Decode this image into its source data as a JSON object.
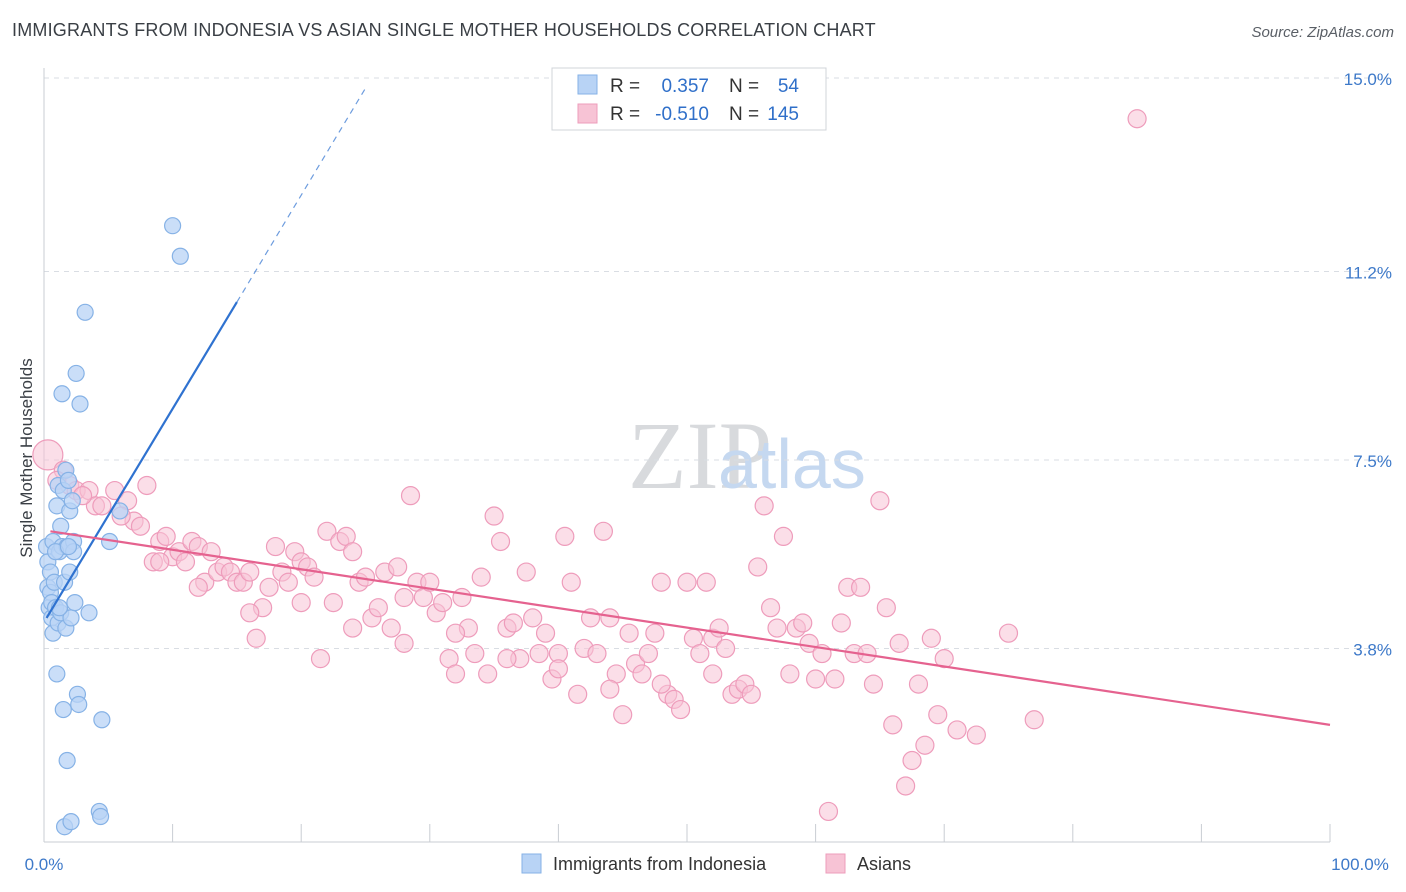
{
  "title": "IMMIGRANTS FROM INDONESIA VS ASIAN SINGLE MOTHER HOUSEHOLDS CORRELATION CHART",
  "source": "Source: ZipAtlas.com",
  "watermark": {
    "zip": "ZIP",
    "atlas": "atlas"
  },
  "legend_top": {
    "rows": [
      {
        "r_label": "R =",
        "r_value": "0.357",
        "n_label": "N =",
        "n_value": "54"
      },
      {
        "r_label": "R =",
        "r_value": "-0.510",
        "n_label": "N =",
        "n_value": "145"
      }
    ]
  },
  "legend_bottom": {
    "items": [
      "Immigrants from Indonesia",
      "Asians"
    ]
  },
  "colors": {
    "blue_fill": "#b8d3f5",
    "blue_stroke": "#86b2e6",
    "blue_line": "#2f72d0",
    "pink_fill": "#f7c3d5",
    "pink_stroke": "#ee9cbb",
    "pink_line": "#e5628f",
    "value_text": "#2f6fc9",
    "grid": "#d9dde3",
    "axis_text": "#3d79c9"
  },
  "chart_data": {
    "type": "scatter",
    "title": "IMMIGRANTS FROM INDONESIA VS ASIAN SINGLE MOTHER HOUSEHOLDS CORRELATION CHART",
    "xlabel": "",
    "ylabel": "Single Mother Households",
    "xlim": [
      0,
      100
    ],
    "ylim": [
      0,
      15
    ],
    "x_tick_labels": [
      "0.0%",
      "100.0%"
    ],
    "y_ticks": [
      3.8,
      7.5,
      11.2,
      15.0
    ],
    "y_tick_labels": [
      "3.8%",
      "7.5%",
      "11.2%",
      "15.0%"
    ],
    "grid": true,
    "legend_position": "top-center",
    "series": [
      {
        "name": "Immigrants from Indonesia",
        "color": "#b8d3f5",
        "regression": {
          "x": [
            0.2,
            15.0
          ],
          "y": [
            4.4,
            10.6
          ],
          "dashed_to": [
            25.0,
            14.8
          ]
        },
        "points": [
          [
            0.2,
            5.8
          ],
          [
            0.3,
            5.5
          ],
          [
            0.3,
            5.0
          ],
          [
            0.4,
            4.6
          ],
          [
            0.5,
            4.9
          ],
          [
            0.5,
            5.3
          ],
          [
            0.6,
            4.4
          ],
          [
            0.6,
            4.7
          ],
          [
            0.7,
            5.9
          ],
          [
            0.7,
            4.1
          ],
          [
            0.8,
            5.1
          ],
          [
            0.9,
            4.6
          ],
          [
            1.0,
            6.6
          ],
          [
            1.0,
            3.3
          ],
          [
            1.1,
            7.0
          ],
          [
            1.1,
            4.3
          ],
          [
            1.2,
            5.7
          ],
          [
            1.3,
            4.5
          ],
          [
            1.3,
            6.2
          ],
          [
            1.4,
            5.8
          ],
          [
            1.4,
            8.8
          ],
          [
            1.5,
            6.9
          ],
          [
            1.5,
            2.6
          ],
          [
            1.6,
            5.1
          ],
          [
            1.6,
            0.3
          ],
          [
            1.7,
            7.3
          ],
          [
            1.7,
            4.2
          ],
          [
            1.8,
            5.8
          ],
          [
            1.8,
            1.6
          ],
          [
            1.9,
            7.1
          ],
          [
            2.0,
            6.5
          ],
          [
            2.0,
            5.3
          ],
          [
            2.1,
            4.4
          ],
          [
            2.1,
            0.4
          ],
          [
            2.2,
            6.7
          ],
          [
            2.3,
            5.9
          ],
          [
            2.3,
            5.7
          ],
          [
            2.4,
            4.7
          ],
          [
            2.5,
            9.2
          ],
          [
            2.6,
            2.9
          ],
          [
            2.7,
            2.7
          ],
          [
            2.8,
            8.6
          ],
          [
            3.2,
            10.4
          ],
          [
            3.5,
            4.5
          ],
          [
            4.3,
            0.6
          ],
          [
            4.4,
            0.5
          ],
          [
            4.5,
            2.4
          ],
          [
            5.1,
            5.9
          ],
          [
            5.9,
            6.5
          ],
          [
            10.0,
            12.1
          ],
          [
            10.6,
            11.5
          ],
          [
            0.9,
            5.7
          ],
          [
            1.2,
            4.6
          ],
          [
            1.9,
            5.8
          ]
        ]
      },
      {
        "name": "Asians",
        "color": "#f7c3d5",
        "regression": {
          "x": [
            0.5,
            100.0
          ],
          "y": [
            6.1,
            2.3
          ]
        },
        "points": [
          [
            0.3,
            7.6
          ],
          [
            1.5,
            7.3
          ],
          [
            2.0,
            7.0
          ],
          [
            2.5,
            6.9
          ],
          [
            3.5,
            6.9
          ],
          [
            4.0,
            6.6
          ],
          [
            4.5,
            6.6
          ],
          [
            5.5,
            6.9
          ],
          [
            6.5,
            6.7
          ],
          [
            7.0,
            6.3
          ],
          [
            7.5,
            6.2
          ],
          [
            8.0,
            7.0
          ],
          [
            8.5,
            5.5
          ],
          [
            9.0,
            5.9
          ],
          [
            9.5,
            6.0
          ],
          [
            10.0,
            5.6
          ],
          [
            10.5,
            5.7
          ],
          [
            11.0,
            5.5
          ],
          [
            11.5,
            5.9
          ],
          [
            12.0,
            5.8
          ],
          [
            12.5,
            5.1
          ],
          [
            13.0,
            5.7
          ],
          [
            13.5,
            5.3
          ],
          [
            14.0,
            5.4
          ],
          [
            14.5,
            5.3
          ],
          [
            15.0,
            5.1
          ],
          [
            15.5,
            5.1
          ],
          [
            16.0,
            5.3
          ],
          [
            16.5,
            4.0
          ],
          [
            17.0,
            4.6
          ],
          [
            17.5,
            5.0
          ],
          [
            18.0,
            5.8
          ],
          [
            18.5,
            5.3
          ],
          [
            19.0,
            5.1
          ],
          [
            19.5,
            5.7
          ],
          [
            20.0,
            5.5
          ],
          [
            20.5,
            5.4
          ],
          [
            21.0,
            5.2
          ],
          [
            21.5,
            3.6
          ],
          [
            22.0,
            6.1
          ],
          [
            22.5,
            4.7
          ],
          [
            23.0,
            5.9
          ],
          [
            23.5,
            6.0
          ],
          [
            24.0,
            5.7
          ],
          [
            24.5,
            5.1
          ],
          [
            25.0,
            5.2
          ],
          [
            25.5,
            4.4
          ],
          [
            26.0,
            4.6
          ],
          [
            26.5,
            5.3
          ],
          [
            27.0,
            4.2
          ],
          [
            27.5,
            5.4
          ],
          [
            28.0,
            4.8
          ],
          [
            28.5,
            6.8
          ],
          [
            29.0,
            5.1
          ],
          [
            29.5,
            4.8
          ],
          [
            30.0,
            5.1
          ],
          [
            30.5,
            4.5
          ],
          [
            31.0,
            4.7
          ],
          [
            31.5,
            3.6
          ],
          [
            32.0,
            3.3
          ],
          [
            32.5,
            4.8
          ],
          [
            33.0,
            4.2
          ],
          [
            33.5,
            3.7
          ],
          [
            34.0,
            5.2
          ],
          [
            34.5,
            3.3
          ],
          [
            35.0,
            6.4
          ],
          [
            35.5,
            5.9
          ],
          [
            36.0,
            4.2
          ],
          [
            36.5,
            4.3
          ],
          [
            37.0,
            3.6
          ],
          [
            37.5,
            5.3
          ],
          [
            38.0,
            4.4
          ],
          [
            38.5,
            3.7
          ],
          [
            39.0,
            4.1
          ],
          [
            39.5,
            3.2
          ],
          [
            40.0,
            3.7
          ],
          [
            40.5,
            6.0
          ],
          [
            41.0,
            5.1
          ],
          [
            41.5,
            2.9
          ],
          [
            42.0,
            3.8
          ],
          [
            42.5,
            4.4
          ],
          [
            43.0,
            3.7
          ],
          [
            43.5,
            6.1
          ],
          [
            44.0,
            4.4
          ],
          [
            44.5,
            3.3
          ],
          [
            45.0,
            2.5
          ],
          [
            45.5,
            4.1
          ],
          [
            46.0,
            3.5
          ],
          [
            46.5,
            3.3
          ],
          [
            47.0,
            3.7
          ],
          [
            47.5,
            4.1
          ],
          [
            48.0,
            5.1
          ],
          [
            48.5,
            2.9
          ],
          [
            49.0,
            2.8
          ],
          [
            49.5,
            2.6
          ],
          [
            50.0,
            5.1
          ],
          [
            50.5,
            4.0
          ],
          [
            51.0,
            3.7
          ],
          [
            51.5,
            5.1
          ],
          [
            52.0,
            4.0
          ],
          [
            52.5,
            4.2
          ],
          [
            53.0,
            3.8
          ],
          [
            53.5,
            2.9
          ],
          [
            54.0,
            3.0
          ],
          [
            54.5,
            3.1
          ],
          [
            55.0,
            2.9
          ],
          [
            55.5,
            5.4
          ],
          [
            56.0,
            6.6
          ],
          [
            56.5,
            4.6
          ],
          [
            57.0,
            4.2
          ],
          [
            57.5,
            6.0
          ],
          [
            58.0,
            3.3
          ],
          [
            58.5,
            4.2
          ],
          [
            59.0,
            4.3
          ],
          [
            59.5,
            3.9
          ],
          [
            60.0,
            3.2
          ],
          [
            60.5,
            3.7
          ],
          [
            61.0,
            0.6
          ],
          [
            61.5,
            3.2
          ],
          [
            62.0,
            4.3
          ],
          [
            62.5,
            5.0
          ],
          [
            63.0,
            3.7
          ],
          [
            63.5,
            5.0
          ],
          [
            64.0,
            3.7
          ],
          [
            64.5,
            3.1
          ],
          [
            65.0,
            6.7
          ],
          [
            65.5,
            4.6
          ],
          [
            66.0,
            2.3
          ],
          [
            66.5,
            3.9
          ],
          [
            67.0,
            1.1
          ],
          [
            67.5,
            1.6
          ],
          [
            68.0,
            3.1
          ],
          [
            68.5,
            1.9
          ],
          [
            69.0,
            4.0
          ],
          [
            69.5,
            2.5
          ],
          [
            70.0,
            3.6
          ],
          [
            71.0,
            2.2
          ],
          [
            72.5,
            2.1
          ],
          [
            75.0,
            4.1
          ],
          [
            77.0,
            2.4
          ],
          [
            85.0,
            14.2
          ],
          [
            1.0,
            7.1
          ],
          [
            3.0,
            6.8
          ],
          [
            6.0,
            6.4
          ],
          [
            9.0,
            5.5
          ],
          [
            12.0,
            5.0
          ],
          [
            16.0,
            4.5
          ],
          [
            20.0,
            4.7
          ],
          [
            24.0,
            4.2
          ],
          [
            28.0,
            3.9
          ],
          [
            32.0,
            4.1
          ],
          [
            36.0,
            3.6
          ],
          [
            40.0,
            3.4
          ],
          [
            44.0,
            3.0
          ],
          [
            48.0,
            3.1
          ],
          [
            52.0,
            3.3
          ]
        ]
      }
    ]
  }
}
